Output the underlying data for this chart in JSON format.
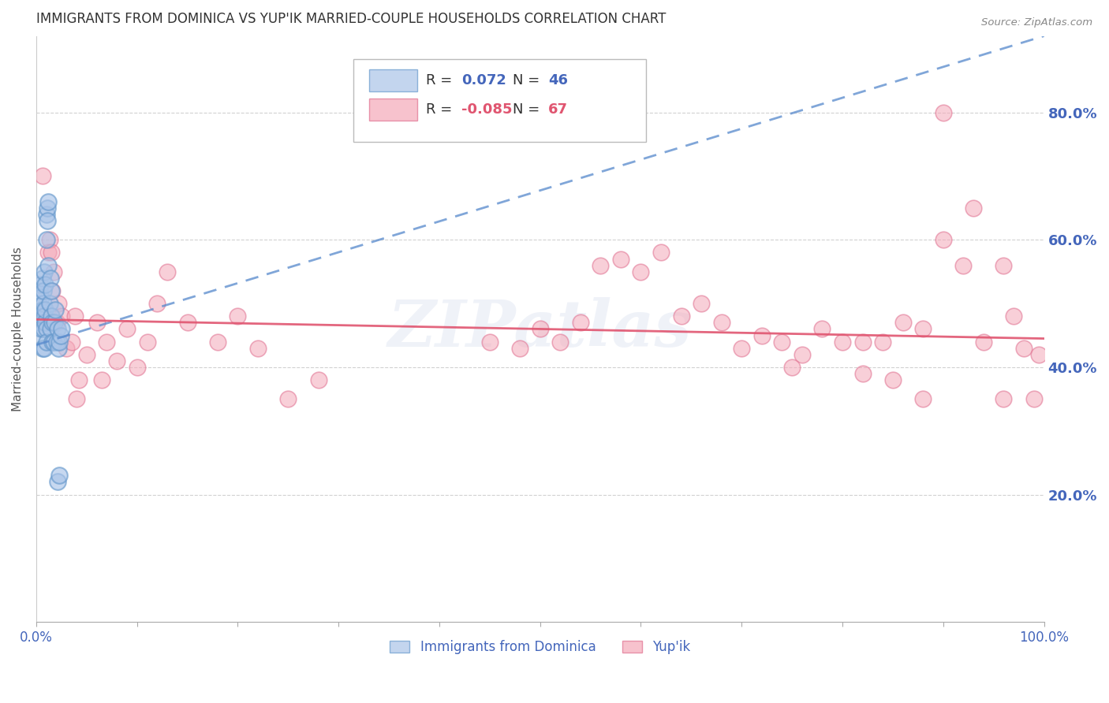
{
  "title": "IMMIGRANTS FROM DOMINICA VS YUP'IK MARRIED-COUPLE HOUSEHOLDS CORRELATION CHART",
  "source": "Source: ZipAtlas.com",
  "ylabel": "Married-couple Households",
  "ytick_labels": [
    "20.0%",
    "40.0%",
    "60.0%",
    "80.0%"
  ],
  "ytick_values": [
    0.2,
    0.4,
    0.6,
    0.8
  ],
  "legend_blue_r": "R =  0.072",
  "legend_blue_n": "N = 46",
  "legend_pink_r": "R = -0.085",
  "legend_pink_n": "N = 67",
  "legend_label_blue": "Immigrants from Dominica",
  "legend_label_pink": "Yup'ik",
  "watermark": "ZIPatlas",
  "blue_color": "#aac4e8",
  "pink_color": "#f4a8b8",
  "blue_edge_color": "#6699cc",
  "pink_edge_color": "#e07090",
  "blue_line_color": "#5588cc",
  "pink_line_color": "#e05570",
  "title_color": "#333333",
  "axis_label_color": "#4466bb",
  "ytick_color": "#4466bb",
  "background_color": "#ffffff",
  "grid_color": "#cccccc",
  "blue_scatter_x": [
    0.001,
    0.002,
    0.003,
    0.003,
    0.004,
    0.004,
    0.005,
    0.005,
    0.006,
    0.006,
    0.006,
    0.007,
    0.007,
    0.007,
    0.008,
    0.008,
    0.008,
    0.009,
    0.009,
    0.009,
    0.01,
    0.01,
    0.01,
    0.01,
    0.011,
    0.011,
    0.012,
    0.012,
    0.013,
    0.014,
    0.014,
    0.015,
    0.015,
    0.016,
    0.016,
    0.017,
    0.018,
    0.019,
    0.02,
    0.021,
    0.022,
    0.023,
    0.024,
    0.025,
    0.021,
    0.023
  ],
  "blue_scatter_y": [
    0.45,
    0.5,
    0.47,
    0.52,
    0.48,
    0.53,
    0.46,
    0.51,
    0.49,
    0.54,
    0.43,
    0.5,
    0.46,
    0.52,
    0.48,
    0.55,
    0.43,
    0.47,
    0.53,
    0.49,
    0.64,
    0.6,
    0.46,
    0.44,
    0.65,
    0.63,
    0.66,
    0.56,
    0.5,
    0.54,
    0.46,
    0.48,
    0.52,
    0.44,
    0.47,
    0.44,
    0.47,
    0.49,
    0.44,
    0.46,
    0.43,
    0.44,
    0.45,
    0.46,
    0.22,
    0.23
  ],
  "pink_scatter_x": [
    0.006,
    0.012,
    0.013,
    0.015,
    0.016,
    0.017,
    0.02,
    0.022,
    0.025,
    0.03,
    0.035,
    0.038,
    0.04,
    0.042,
    0.05,
    0.06,
    0.065,
    0.07,
    0.08,
    0.09,
    0.1,
    0.11,
    0.12,
    0.13,
    0.15,
    0.18,
    0.2,
    0.22,
    0.25,
    0.28,
    0.45,
    0.48,
    0.5,
    0.52,
    0.54,
    0.56,
    0.58,
    0.6,
    0.62,
    0.64,
    0.66,
    0.68,
    0.7,
    0.72,
    0.74,
    0.76,
    0.78,
    0.8,
    0.82,
    0.84,
    0.86,
    0.88,
    0.9,
    0.92,
    0.94,
    0.96,
    0.97,
    0.98,
    0.99,
    0.995,
    0.75,
    0.82,
    0.85,
    0.88,
    0.9,
    0.93,
    0.96
  ],
  "pink_scatter_y": [
    0.7,
    0.58,
    0.6,
    0.58,
    0.52,
    0.55,
    0.47,
    0.5,
    0.48,
    0.43,
    0.44,
    0.48,
    0.35,
    0.38,
    0.42,
    0.47,
    0.38,
    0.44,
    0.41,
    0.46,
    0.4,
    0.44,
    0.5,
    0.55,
    0.47,
    0.44,
    0.48,
    0.43,
    0.35,
    0.38,
    0.44,
    0.43,
    0.46,
    0.44,
    0.47,
    0.56,
    0.57,
    0.55,
    0.58,
    0.48,
    0.5,
    0.47,
    0.43,
    0.45,
    0.44,
    0.42,
    0.46,
    0.44,
    0.44,
    0.44,
    0.47,
    0.46,
    0.6,
    0.56,
    0.44,
    0.56,
    0.48,
    0.43,
    0.35,
    0.42,
    0.4,
    0.39,
    0.38,
    0.35,
    0.8,
    0.65,
    0.35
  ],
  "blue_trend_x": [
    0.0,
    1.0
  ],
  "blue_trend_y_start": 0.435,
  "blue_trend_y_end": 0.92,
  "pink_trend_x": [
    0.0,
    1.0
  ],
  "pink_trend_y_start": 0.475,
  "pink_trend_y_end": 0.445,
  "xlim": [
    0.0,
    1.0
  ],
  "ylim": [
    0.0,
    0.92
  ],
  "xtick_positions": [
    0.0,
    1.0
  ],
  "xtick_labels": [
    "0.0%",
    "100.0%"
  ]
}
